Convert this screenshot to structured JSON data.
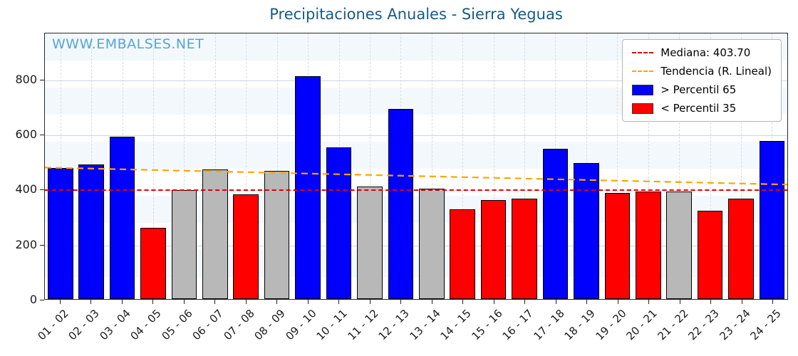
{
  "title": "Precipitaciones Anuales - Sierra Yeguas",
  "watermark": "WWW.EMBALSES.NET",
  "colors": {
    "title": "#175a86",
    "watermark": "#55a5d6",
    "median_line": "#e00000",
    "trend_line": "#ffa500",
    "bar_above_p65": "#0000ff",
    "bar_below_p35": "#ff0000",
    "bar_mid": "#b8b8b8"
  },
  "legend": {
    "items": [
      {
        "label": "Mediana: 403.70",
        "swatch": "dashed-line",
        "color": "#e00000"
      },
      {
        "label": "Tendencia (R. Lineal)",
        "swatch": "dashed-line",
        "color": "#ffa500"
      },
      {
        "label": "> Percentil 65",
        "swatch": "box",
        "color": "#0000ff"
      },
      {
        "label": "< Percentil 35",
        "swatch": "box",
        "color": "#ff0000"
      }
    ]
  },
  "chart_data": {
    "type": "bar",
    "title": "Precipitaciones Anuales - Sierra Yeguas",
    "xlabel": "",
    "ylabel": "",
    "categories": [
      "01 - 02",
      "02 - 03",
      "03 - 04",
      "04 - 05",
      "05 - 06",
      "06 - 07",
      "07 - 08",
      "08 - 09",
      "09 - 10",
      "10 - 11",
      "11 - 12",
      "12 - 13",
      "13 - 14",
      "14 - 15",
      "15 - 16",
      "16 - 17",
      "17 - 18",
      "18 - 19",
      "19 - 20",
      "20 - 21",
      "21 - 22",
      "22 - 23",
      "23 - 24",
      "24 - 25"
    ],
    "values": [
      475,
      490,
      590,
      260,
      395,
      470,
      380,
      465,
      810,
      550,
      410,
      690,
      400,
      325,
      360,
      365,
      545,
      495,
      385,
      390,
      390,
      320,
      365,
      575
    ],
    "bar_classes": [
      "p65",
      "p65",
      "p65",
      "p35",
      "mid",
      "mid",
      "p35",
      "mid",
      "p65",
      "p65",
      "mid",
      "p65",
      "mid",
      "p35",
      "p35",
      "p35",
      "p65",
      "p65",
      "p35",
      "p35",
      "mid",
      "p35",
      "p35",
      "p65"
    ],
    "palette": {
      "p65": "#0000ff",
      "p35": "#ff0000",
      "mid": "#b8b8b8"
    },
    "median": 403.7,
    "trend_line": {
      "start_value": 483,
      "end_value": 421
    },
    "ylim": [
      0,
      970
    ],
    "yticks": [
      0,
      200,
      400,
      600,
      800
    ],
    "grid": true,
    "legend_position": "upper right"
  }
}
